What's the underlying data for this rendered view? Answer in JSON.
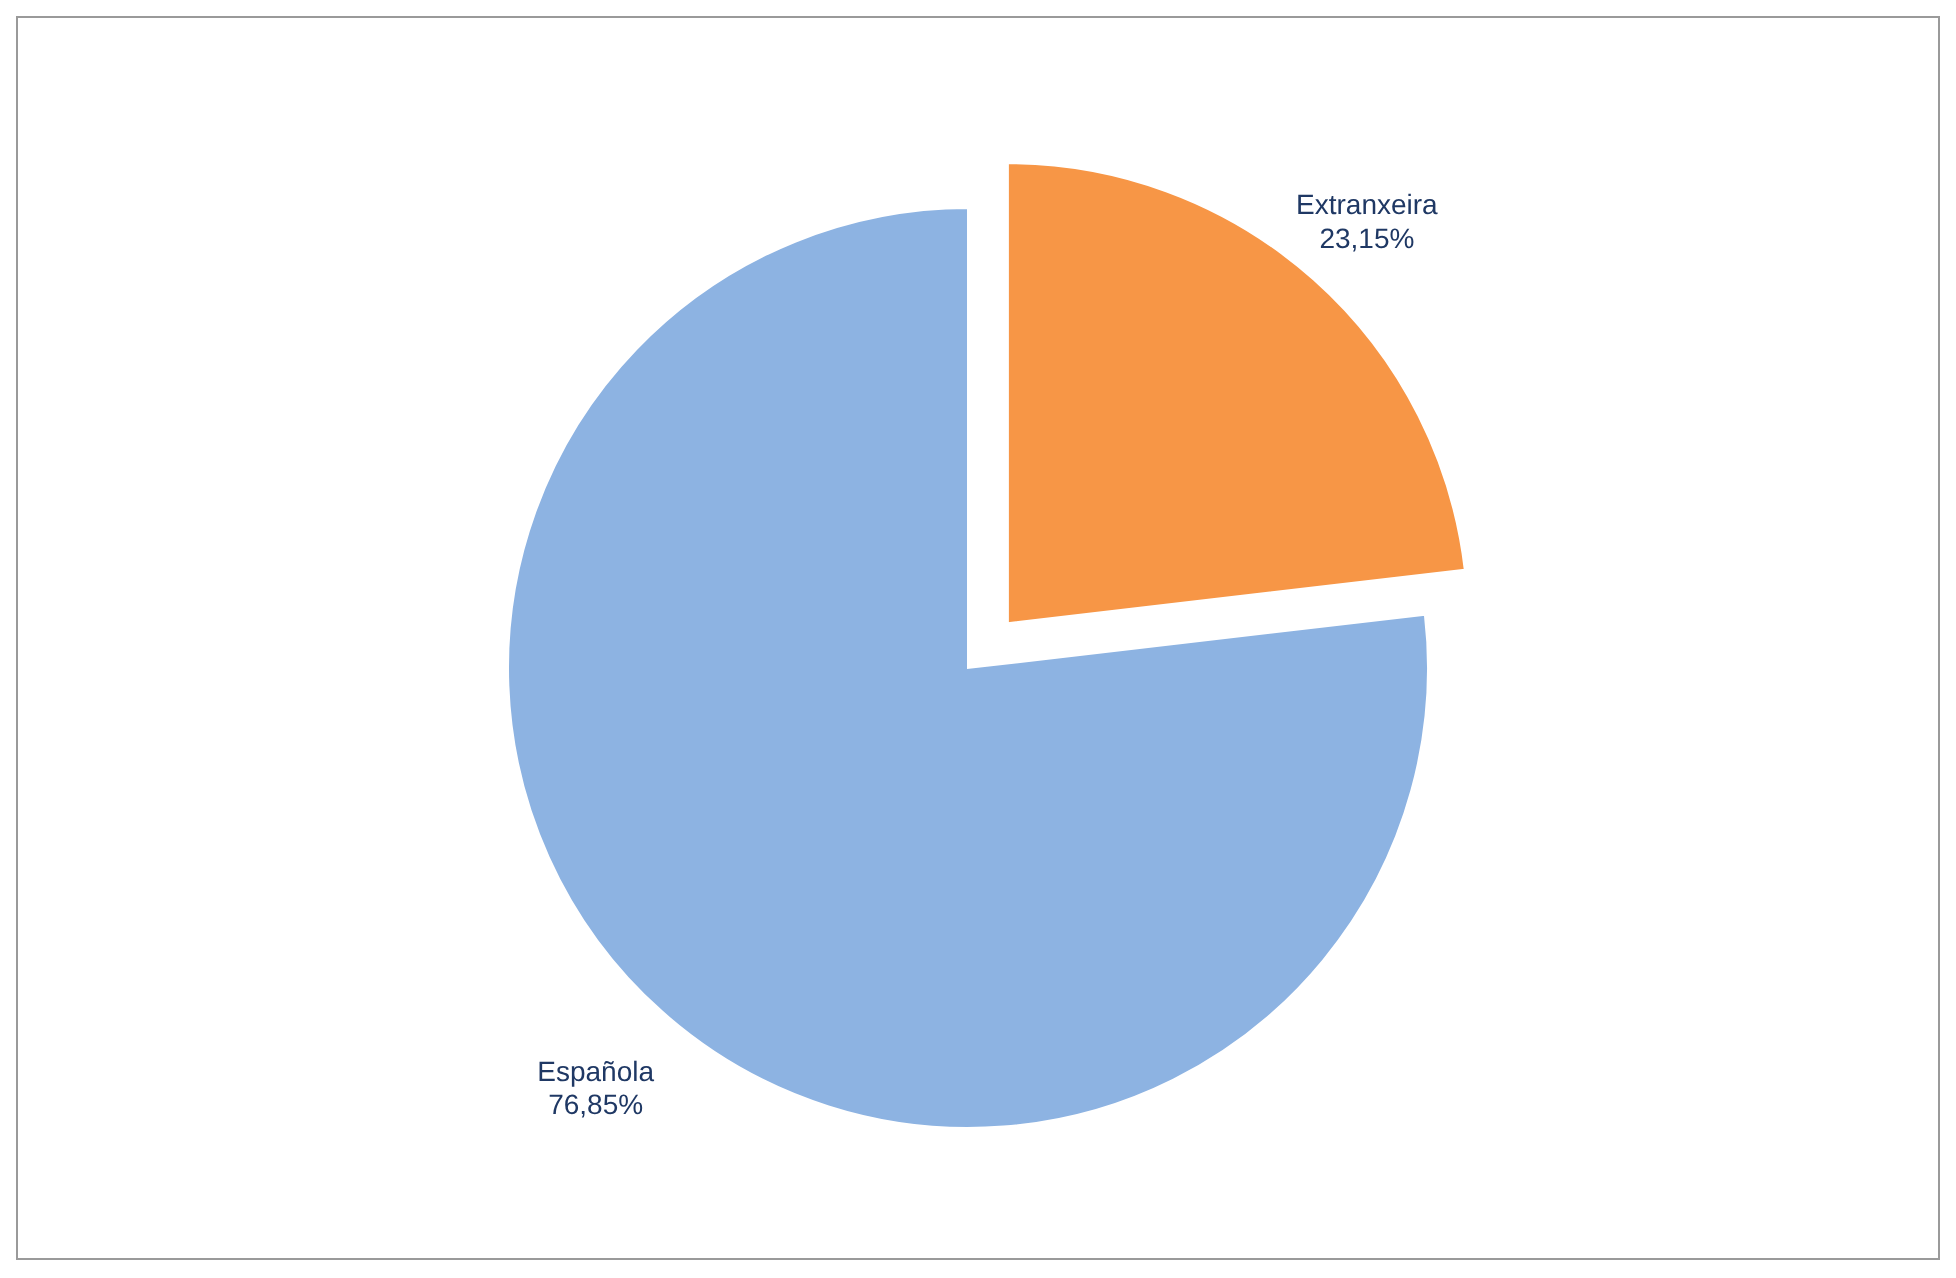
{
  "chart_data": {
    "type": "pie",
    "categories": [
      "Extranxeira",
      "Española"
    ],
    "values": [
      23.15,
      76.85
    ],
    "colors": [
      "#f79646",
      "#8db3e2"
    ],
    "value_labels": [
      "23,15%",
      "76,85%"
    ]
  }
}
